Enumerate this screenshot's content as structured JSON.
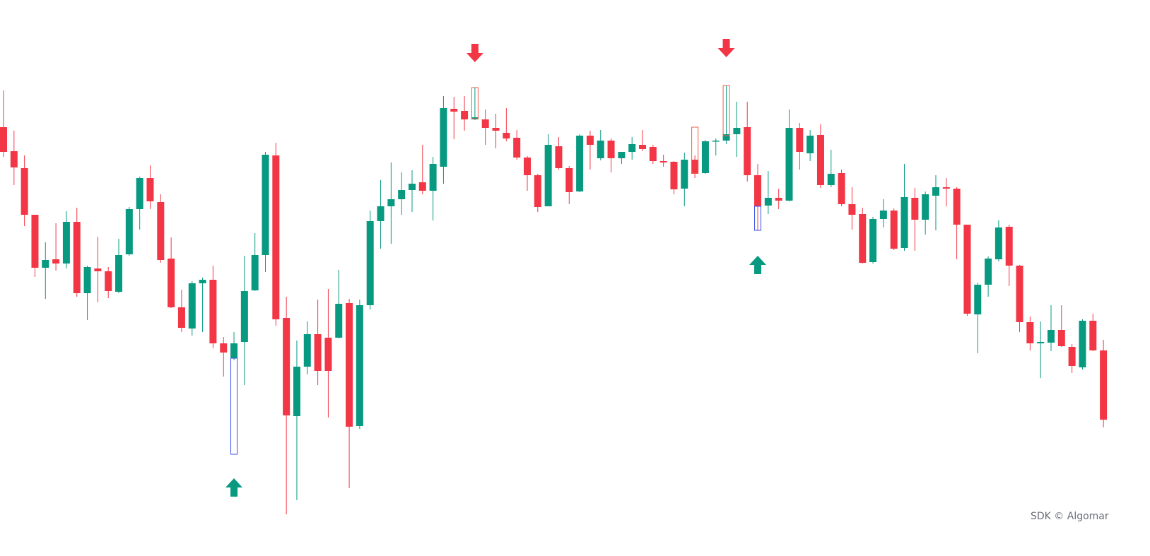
{
  "chart_data": {
    "type": "candlestick",
    "up_color": "#089981",
    "down_color": "#f23645",
    "ylim": [
      0,
      800
    ],
    "open": [
      620,
      586,
      562,
      496,
      421,
      433,
      427,
      486,
      385,
      420,
      416,
      387,
      440,
      504,
      548,
      514,
      434,
      365,
      335,
      399,
      404,
      314,
      293,
      316,
      389,
      439,
      580,
      350,
      211,
      281,
      327,
      322,
      322,
      371,
      197,
      368,
      487,
      508,
      518,
      531,
      542,
      530,
      564,
      646,
      643,
      631,
      631,
      619,
      612,
      605,
      577,
      552,
      508,
      593,
      562,
      529,
      608,
      576,
      601,
      576,
      585,
      595,
      592,
      572,
      571,
      533,
      574,
      555,
      600,
      601,
      610,
      620,
      552,
      509,
      520,
      516,
      619,
      583,
      609,
      538,
      555,
      511,
      497,
      429,
      490,
      502,
      449,
      520,
      489,
      523,
      535,
      533,
      482,
      355,
      397,
      433,
      479,
      424,
      344,
      314,
      315,
      333,
      309,
      280,
      346,
      304
    ],
    "high": [
      672,
      615,
      580,
      496,
      457,
      484,
      501,
      506,
      424,
      465,
      422,
      462,
      507,
      550,
      566,
      525,
      464,
      390,
      402,
      407,
      424,
      323,
      330,
      438,
      470,
      585,
      598,
      380,
      318,
      345,
      376,
      391,
      418,
      377,
      376,
      502,
      545,
      570,
      556,
      559,
      595,
      578,
      664,
      663,
      664,
      676,
      645,
      639,
      647,
      616,
      579,
      554,
      610,
      606,
      565,
      610,
      615,
      616,
      604,
      585,
      606,
      616,
      595,
      581,
      572,
      584,
      580,
      602,
      604,
      679,
      656,
      656,
      568,
      558,
      533,
      645,
      626,
      616,
      624,
      588,
      560,
      535,
      506,
      493,
      518,
      505,
      568,
      534,
      529,
      552,
      548,
      535,
      482,
      400,
      437,
      488,
      482,
      425,
      352,
      345,
      368,
      368,
      313,
      348,
      356,
      319
    ],
    "low": [
      578,
      538,
      480,
      408,
      377,
      417,
      420,
      380,
      347,
      372,
      378,
      385,
      438,
      475,
      504,
      428,
      364,
      330,
      325,
      330,
      307,
      267,
      290,
      255,
      388,
      415,
      339,
      72,
      92,
      270,
      255,
      209,
      321,
      109,
      193,
      362,
      448,
      455,
      496,
      500,
      525,
      488,
      540,
      603,
      615,
      630,
      595,
      590,
      600,
      574,
      530,
      500,
      508,
      560,
      511,
      528,
      560,
      573,
      556,
      568,
      574,
      586,
      568,
      564,
      525,
      508,
      548,
      554,
      580,
      596,
      578,
      543,
      474,
      497,
      504,
      515,
      560,
      572,
      534,
      535,
      508,
      475,
      427,
      427,
      478,
      446,
      445,
      445,
      468,
      474,
      508,
      433,
      353,
      300,
      380,
      430,
      395,
      330,
      304,
      265,
      303,
      309,
      272,
      277,
      303,
      195
    ],
    "close": [
      585,
      563,
      496,
      421,
      432,
      427,
      486,
      385,
      422,
      416,
      388,
      439,
      504,
      548,
      515,
      432,
      365,
      336,
      399,
      404,
      314,
      301,
      314,
      388,
      439,
      581,
      348,
      212,
      281,
      327,
      275,
      275,
      370,
      196,
      368,
      487,
      508,
      518,
      531,
      540,
      530,
      568,
      647,
      642,
      631,
      634,
      619,
      615,
      604,
      577,
      552,
      507,
      595,
      562,
      528,
      608,
      595,
      601,
      576,
      585,
      596,
      589,
      572,
      570,
      532,
      574,
      554,
      600,
      601,
      610,
      619,
      552,
      508,
      520,
      516,
      619,
      585,
      608,
      538,
      554,
      511,
      496,
      428,
      490,
      502,
      448,
      521,
      489,
      525,
      535,
      533,
      482,
      356,
      397,
      434,
      478,
      424,
      344,
      314,
      316,
      333,
      310,
      282,
      346,
      304,
      206
    ],
    "boxes": [
      {
        "index": 22,
        "range": [
          293,
          157
        ],
        "color": "#3a4ee8"
      },
      {
        "index": 45,
        "range": [
          676,
          632
        ],
        "color": "#f25b4a"
      },
      {
        "index": 66,
        "range": [
          620,
          555
        ],
        "color": "#f25b4a"
      },
      {
        "index": 69,
        "range": [
          679,
          608
        ],
        "color": "#f25b4a"
      },
      {
        "index": 72,
        "range": [
          508,
          474
        ],
        "color": "#3a4ee8"
      }
    ],
    "arrows": [
      {
        "index": 22,
        "value": 110,
        "direction": "up"
      },
      {
        "index": 45,
        "value": 725,
        "direction": "down"
      },
      {
        "index": 69,
        "value": 732,
        "direction": "down"
      },
      {
        "index": 72,
        "value": 425,
        "direction": "up"
      }
    ],
    "watermark": "SDK © Algomar"
  }
}
